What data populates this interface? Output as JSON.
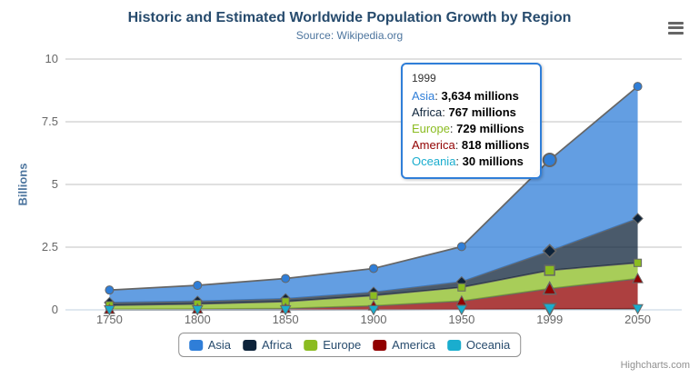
{
  "header": {
    "title": "Historic and Estimated Worldwide Population Growth by Region",
    "subtitle": "Source: Wikipedia.org"
  },
  "icons": {
    "menu": "hamburger-icon"
  },
  "credits": "Highcharts.com",
  "colors": {
    "title": "#274b6d",
    "subtitle": "#4d759e",
    "series_line": "#666666",
    "grid": "#C0C0C0",
    "axis_line": "#C0D0E0",
    "tick_label": "#666666",
    "legend_text": "#274b6d",
    "legend_border": "#909090"
  },
  "chart_data": {
    "type": "area",
    "stacking": "normal",
    "title": "Historic and Estimated Worldwide Population Growth by Region",
    "subtitle": "Source: Wikipedia.org",
    "categories": [
      "1750",
      "1800",
      "1850",
      "1900",
      "1950",
      "1999",
      "2050"
    ],
    "series": [
      {
        "name": "Asia",
        "color": "#2f7ed8",
        "marker": "circle",
        "values": [
          502,
          635,
          809,
          947,
          1402,
          3634,
          5268
        ]
      },
      {
        "name": "Africa",
        "color": "#0d233a",
        "marker": "diamond",
        "values": [
          106,
          107,
          111,
          133,
          221,
          767,
          1766
        ]
      },
      {
        "name": "Europe",
        "color": "#8bbc21",
        "marker": "square",
        "values": [
          163,
          203,
          276,
          408,
          547,
          729,
          628
        ]
      },
      {
        "name": "America",
        "color": "#910000",
        "marker": "triangle",
        "values": [
          18,
          31,
          54,
          156,
          339,
          818,
          1201
        ]
      },
      {
        "name": "Oceania",
        "color": "#1aadce",
        "marker": "triangle-down",
        "values": [
          2,
          2,
          2,
          6,
          13,
          30,
          46
        ]
      }
    ],
    "values_unit": "millions",
    "xlabel": "",
    "ylabel": "Billions",
    "yticks": [
      0,
      2.5,
      5,
      7.5,
      10
    ],
    "ylim": [
      0,
      10
    ],
    "grid": "horizontal",
    "legend_position": "bottom",
    "fill_opacity": 0.75,
    "hover_category_index": 5
  },
  "tooltip": {
    "header": "1999",
    "border_color": "#2f7ed8",
    "rows": [
      {
        "name": "Asia",
        "color": "#2f7ed8",
        "value": "3,634 millions"
      },
      {
        "name": "Africa",
        "color": "#0d233a",
        "value": "767 millions"
      },
      {
        "name": "Europe",
        "color": "#8bbc21",
        "value": "729 millions"
      },
      {
        "name": "America",
        "color": "#910000",
        "value": "818 millions"
      },
      {
        "name": "Oceania",
        "color": "#1aadce",
        "value": "30 millions"
      }
    ]
  }
}
